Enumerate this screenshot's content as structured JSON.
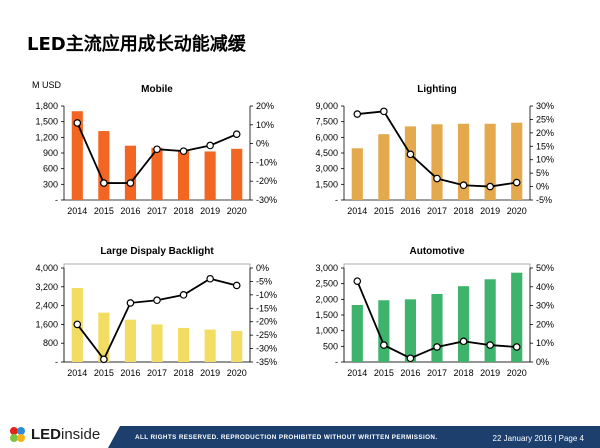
{
  "slide_title": "LED主流应用成长动能减缓",
  "unit_label": "M USD",
  "footer": {
    "logo_text_bold": "LED",
    "logo_text_rest": "inside",
    "rights": "ALL RIGHTS RESERVED. REPRODUCTION PROHIBITED WITHOUT WRITTEN PERMISSION.",
    "date_page": "22 January 2016 | Page 4"
  },
  "colors": {
    "mobile": "#f26522",
    "lighting": "#e3a94c",
    "backlight": "#f2dc62",
    "automotive": "#3db36b",
    "footer_bar": "#1c3f6e"
  },
  "chart_data": [
    {
      "type": "bar",
      "title": "Mobile",
      "categories": [
        "2014",
        "2015",
        "2016",
        "2017",
        "2018",
        "2019",
        "2020"
      ],
      "series": [
        {
          "axis": "left",
          "type": "bar",
          "values": [
            1700,
            1320,
            1040,
            1000,
            960,
            930,
            980
          ]
        },
        {
          "axis": "right",
          "type": "line",
          "values": [
            11,
            -21,
            -21,
            -3,
            -4,
            -1,
            5
          ]
        }
      ],
      "left_axis": {
        "ylim": [
          0,
          1800
        ],
        "ticks": [
          "-",
          "300",
          "600",
          "900",
          "1,200",
          "1,500",
          "1,800"
        ]
      },
      "right_axis": {
        "ylim": [
          -30,
          20
        ],
        "ticks": [
          "-30%",
          "-20%",
          "-10%",
          "0%",
          "10%",
          "20%"
        ]
      }
    },
    {
      "type": "bar",
      "title": "Lighting",
      "categories": [
        "2014",
        "2015",
        "2016",
        "2017",
        "2018",
        "2019",
        "2020"
      ],
      "series": [
        {
          "axis": "left",
          "type": "bar",
          "values": [
            4950,
            6300,
            7050,
            7250,
            7300,
            7300,
            7400
          ]
        },
        {
          "axis": "right",
          "type": "line",
          "values": [
            27,
            28,
            12,
            3,
            0.5,
            0,
            1.5
          ]
        }
      ],
      "left_axis": {
        "ylim": [
          0,
          9000
        ],
        "ticks": [
          "-",
          "1,500",
          "3,000",
          "4,500",
          "6,000",
          "7,500",
          "9,000"
        ]
      },
      "right_axis": {
        "ylim": [
          -5,
          30
        ],
        "ticks": [
          "-5%",
          "0%",
          "5%",
          "10%",
          "15%",
          "20%",
          "25%",
          "30%"
        ]
      }
    },
    {
      "type": "bar",
      "title": "Large Dispaly Backlight",
      "categories": [
        "2014",
        "2015",
        "2016",
        "2017",
        "2018",
        "2019",
        "2020"
      ],
      "series": [
        {
          "axis": "left",
          "type": "bar",
          "values": [
            3150,
            2100,
            1800,
            1600,
            1450,
            1380,
            1320
          ]
        },
        {
          "axis": "right",
          "type": "line",
          "values": [
            -21,
            -34,
            -13,
            -12,
            -10,
            -4,
            -6.5
          ]
        }
      ],
      "left_axis": {
        "ylim": [
          0,
          4000
        ],
        "ticks": [
          "-",
          "800",
          "1,600",
          "2,400",
          "3,200",
          "4,000"
        ]
      },
      "right_axis": {
        "ylim": [
          -35,
          0
        ],
        "ticks": [
          "-35%",
          "-30%",
          "-25%",
          "-20%",
          "-15%",
          "-10%",
          "-5%",
          "0%"
        ]
      }
    },
    {
      "type": "bar",
      "title": "Automotive",
      "categories": [
        "2014",
        "2015",
        "2016",
        "2017",
        "2018",
        "2019",
        "2020"
      ],
      "series": [
        {
          "axis": "left",
          "type": "bar",
          "values": [
            1820,
            1970,
            2000,
            2170,
            2420,
            2640,
            2850
          ]
        },
        {
          "axis": "right",
          "type": "line",
          "values": [
            43,
            9,
            2,
            8,
            11,
            9,
            8
          ]
        }
      ],
      "left_axis": {
        "ylim": [
          0,
          3000
        ],
        "ticks": [
          "-",
          "500",
          "1,000",
          "1,500",
          "2,000",
          "2,500",
          "3,000"
        ]
      },
      "right_axis": {
        "ylim": [
          0,
          50
        ],
        "ticks": [
          "0%",
          "10%",
          "20%",
          "30%",
          "40%",
          "50%"
        ]
      }
    }
  ]
}
